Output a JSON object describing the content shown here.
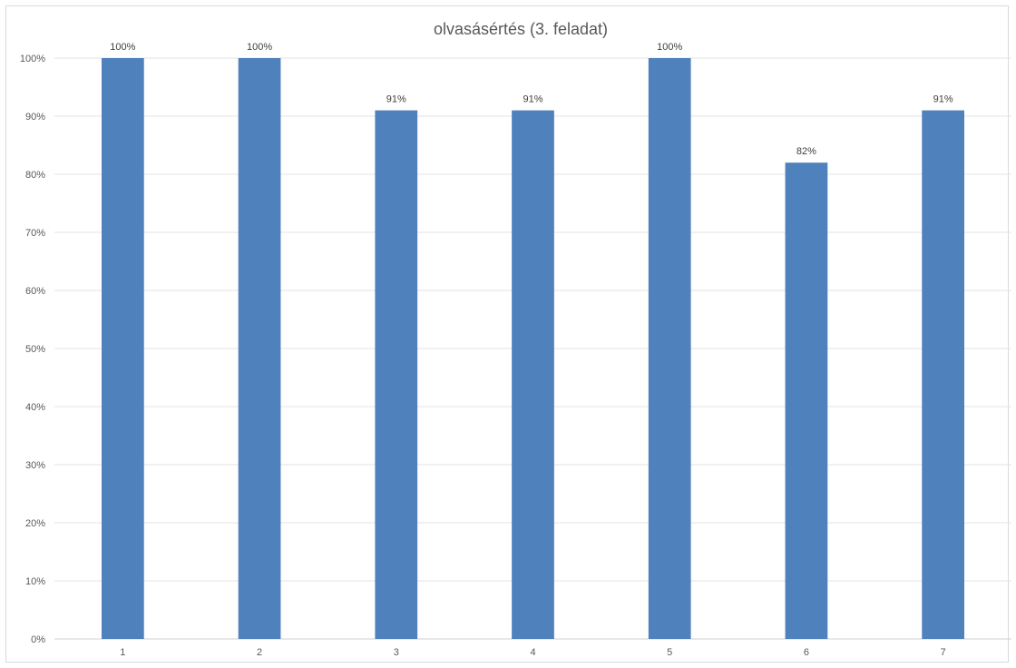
{
  "chart_data": {
    "type": "bar",
    "title": "olvasásértés (3. feladat)",
    "categories": [
      "1",
      "2",
      "3",
      "4",
      "5",
      "6",
      "7"
    ],
    "values": [
      100,
      100,
      91,
      91,
      100,
      82,
      91
    ],
    "data_labels": [
      "100%",
      "100%",
      "91%",
      "91%",
      "100%",
      "82%",
      "91%"
    ],
    "ylim": [
      0,
      100
    ],
    "yticks": [
      "0%",
      "10%",
      "20%",
      "30%",
      "40%",
      "50%",
      "60%",
      "70%",
      "80%",
      "90%",
      "100%"
    ],
    "grid": true,
    "legend": "none",
    "bar_color": "#4f81bd"
  }
}
